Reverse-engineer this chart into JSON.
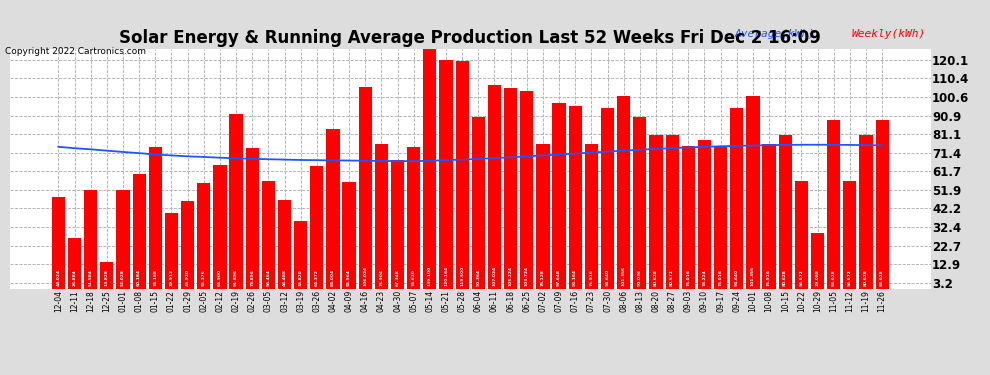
{
  "title": "Solar Energy & Running Average Production Last 52 Weeks Fri Dec 2 16:09",
  "copyright": "Copyright 2022 Cartronics.com",
  "legend_avg": "Average(kWh)",
  "legend_weekly": "Weekly(kWh)",
  "bar_color": "#ff0000",
  "avg_line_color": "#2255ff",
  "background_color": "#dddddd",
  "plot_bg_color": "#ffffff",
  "grid_color": "#aaaaaa",
  "yticks": [
    3.2,
    12.9,
    22.7,
    32.4,
    42.2,
    51.9,
    61.7,
    71.4,
    81.1,
    90.9,
    100.6,
    110.4,
    120.1
  ],
  "ylim": [
    0,
    126
  ],
  "categories": [
    "12-04",
    "12-11",
    "12-18",
    "12-25",
    "01-01",
    "01-08",
    "01-15",
    "01-22",
    "01-29",
    "02-05",
    "02-12",
    "02-19",
    "02-26",
    "03-05",
    "03-12",
    "03-19",
    "03-26",
    "04-02",
    "04-09",
    "04-16",
    "04-23",
    "04-30",
    "05-07",
    "05-14",
    "05-21",
    "05-28",
    "06-04",
    "06-11",
    "06-18",
    "06-25",
    "07-02",
    "07-09",
    "07-16",
    "07-23",
    "07-30",
    "08-06",
    "08-13",
    "08-20",
    "08-27",
    "09-03",
    "09-10",
    "09-17",
    "09-24",
    "10-01",
    "10-08",
    "10-15",
    "10-22",
    "10-29",
    "11-05",
    "11-12",
    "11-19",
    "11-26"
  ],
  "weekly_values": [
    48.024,
    26.884,
    51.584,
    13.828,
    52.028,
    60.184,
    74.188,
    39.912,
    45.92,
    55.376,
    64.9,
    91.896,
    73.896,
    56.464,
    46.488,
    35.82,
    64.372,
    84.004,
    55.964,
    106.024,
    75.904,
    67.348,
    74.62,
    139.1,
    120.164,
    119.5,
    90.364,
    107.024,
    105.224,
    103.724,
    76.128,
    97.648,
    96.164,
    75.916,
    94.64,
    101.356,
    90.036,
    80.628,
    80.572,
    75.016,
    78.224,
    75.016,
    94.64,
    101.356,
    75.916,
    80.628,
    56.572,
    29.088,
    88.628,
    56.572,
    80.628,
    88.628
  ],
  "avg_values": [
    74.5,
    73.8,
    73.2,
    72.5,
    71.8,
    71.2,
    70.5,
    70.0,
    69.5,
    69.2,
    68.8,
    68.5,
    68.2,
    68.0,
    67.8,
    67.6,
    67.5,
    67.4,
    67.3,
    67.2,
    67.1,
    67.0,
    67.0,
    67.2,
    67.5,
    67.8,
    68.2,
    68.6,
    69.0,
    69.5,
    70.0,
    70.5,
    71.0,
    71.5,
    72.0,
    72.5,
    73.0,
    73.4,
    73.8,
    74.2,
    74.5,
    74.8,
    75.0,
    75.2,
    75.4,
    75.5,
    75.6,
    75.6,
    75.6,
    75.5,
    75.4,
    75.3
  ],
  "title_fontsize": 12,
  "ytick_fontsize": 8.5,
  "xtick_fontsize": 5.5,
  "bar_label_fontsize": 3.2,
  "legend_fontsize": 8,
  "copyright_fontsize": 6.5
}
